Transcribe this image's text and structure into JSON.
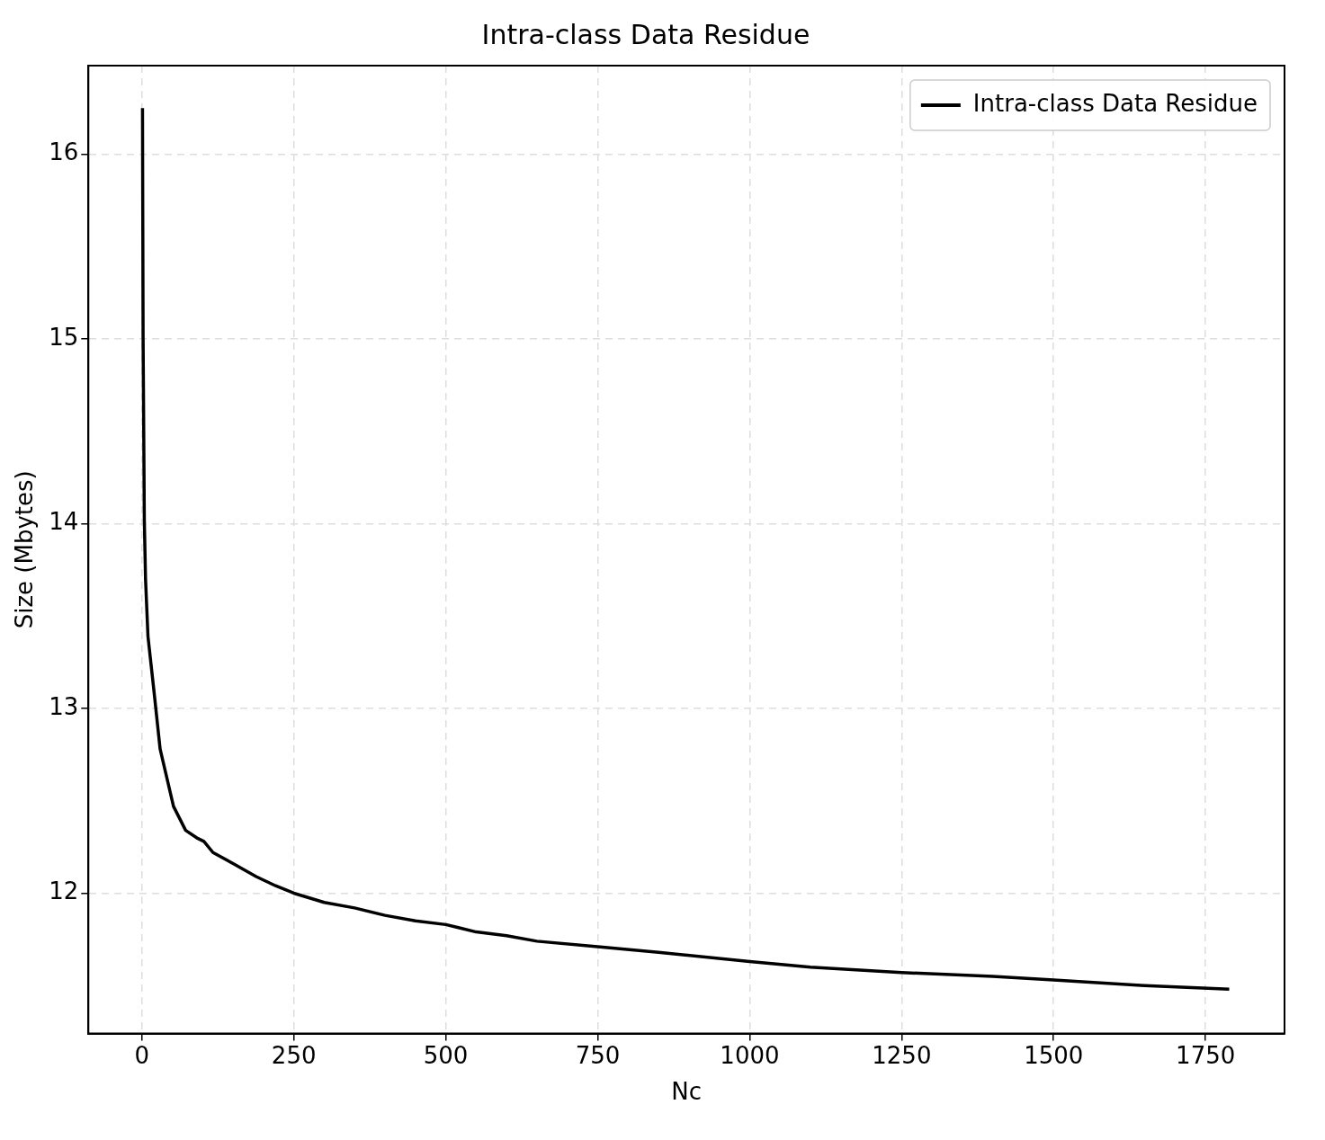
{
  "chart_data": {
    "type": "line",
    "title": "Intra-class Data Residue",
    "xlabel": "Nc",
    "ylabel": "Size (Mbytes)",
    "series": [
      {
        "name": "Intra-class Data Residue",
        "color": "#000000",
        "x": [
          1,
          2,
          4,
          6,
          10,
          20,
          30,
          52,
          72,
          90,
          102,
          117,
          150,
          188,
          220,
          250,
          300,
          350,
          400,
          450,
          500,
          550,
          600,
          650,
          750,
          850,
          1000,
          1100,
          1250,
          1400,
          1500,
          1650,
          1789
        ],
        "values": [
          16.25,
          15.0,
          14.02,
          13.7,
          13.39,
          13.09,
          12.78,
          12.47,
          12.34,
          12.3,
          12.28,
          12.22,
          12.16,
          12.09,
          12.04,
          12.0,
          11.95,
          11.92,
          11.88,
          11.85,
          11.83,
          11.79,
          11.77,
          11.74,
          11.71,
          11.68,
          11.63,
          11.6,
          11.57,
          11.55,
          11.53,
          11.5,
          11.48
        ]
      }
    ],
    "xlim": [
      -88,
      1880
    ],
    "ylim": [
      11.24,
      16.48
    ],
    "xticks": [
      0,
      250,
      500,
      750,
      1000,
      1250,
      1500,
      1750
    ],
    "yticks": [
      12,
      13,
      14,
      15,
      16
    ],
    "grid": true,
    "legend": "top right",
    "marker": "none",
    "line_style": "solid"
  }
}
